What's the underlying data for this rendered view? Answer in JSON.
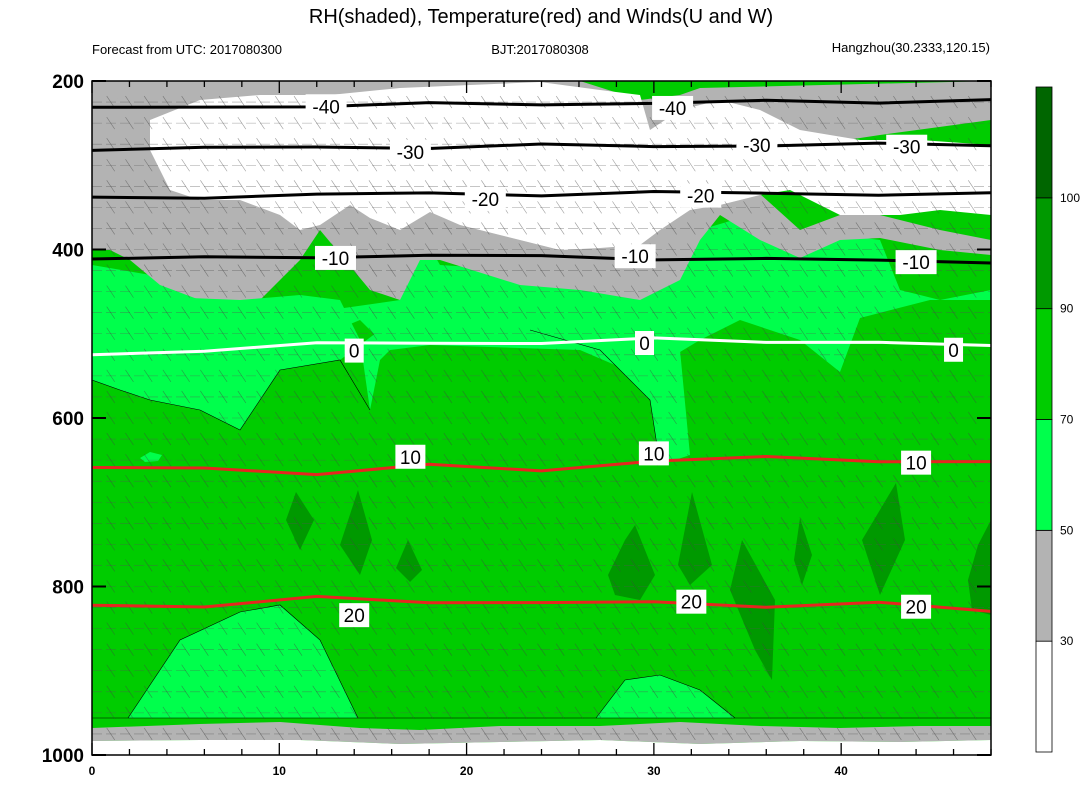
{
  "title": "RH(shaded), Temperature(red) and Winds(U and W)",
  "subtitle_left": "Forecast from UTC: 2017080300",
  "subtitle_center": "BJT:2017080308",
  "subtitle_right": "Hangzhou(30.2333,120.15)",
  "colors": {
    "rh_lt30": "#ffffff",
    "rh_30_50": "#b3b3b3",
    "rh_50_70": "#00ff4c",
    "rh_70_90": "#00cc00",
    "rh_90_100": "#009900",
    "rh_gt100": "#006600",
    "temperature_positive": "#e6261f",
    "temperature_zero": "#ffffff",
    "temperature_negative": "#000000"
  },
  "chart_data": {
    "type": "contour",
    "title": "RH(shaded), Temperature(red) and Winds(U and W)",
    "xlabel": "",
    "ylabel": "",
    "xlim": [
      0,
      48
    ],
    "ylim": [
      200,
      1000
    ],
    "y_inverted": true,
    "x_ticks": [
      0,
      10,
      20,
      30,
      40
    ],
    "y_ticks": [
      200,
      400,
      600,
      800,
      1000
    ],
    "colorbar": {
      "levels": [
        30,
        50,
        70,
        90,
        100
      ],
      "labels": [
        "30",
        "50",
        "70",
        "90",
        "100"
      ]
    },
    "temperature_contours": [
      {
        "label": "-40",
        "level": -40,
        "x": [
          0,
          6,
          12,
          18,
          24,
          30,
          36,
          42,
          48
        ],
        "y": [
          233,
          231,
          229,
          228,
          227,
          226,
          225,
          224,
          223
        ]
      },
      {
        "label": "-30",
        "level": -30,
        "x": [
          0,
          6,
          12,
          18,
          24,
          30,
          36,
          42,
          48
        ],
        "y": [
          280,
          280,
          279,
          278,
          277,
          277,
          276,
          276,
          275
        ]
      },
      {
        "label": "-20",
        "level": -20,
        "x": [
          0,
          6,
          12,
          18,
          24,
          30,
          36,
          42,
          48
        ],
        "y": [
          340,
          337,
          335,
          334,
          334,
          333,
          333,
          334,
          335
        ]
      },
      {
        "label": "-10",
        "level": -10,
        "x": [
          0,
          6,
          12,
          18,
          24,
          30,
          36,
          42,
          48
        ],
        "y": [
          410,
          411,
          408,
          407,
          409,
          410,
          412,
          413,
          414
        ]
      },
      {
        "label": "0",
        "level": 0,
        "x": [
          0,
          6,
          12,
          18,
          24,
          30,
          36,
          42,
          48
        ],
        "y": [
          525,
          519,
          513,
          510,
          511,
          507,
          508,
          511,
          515
        ]
      },
      {
        "label": "10",
        "level": 10,
        "x": [
          0,
          6,
          12,
          18,
          24,
          30,
          36,
          42,
          48
        ],
        "y": [
          660,
          660,
          665,
          657,
          662,
          650,
          648,
          650,
          652
        ]
      },
      {
        "label": "20",
        "level": 20,
        "x": [
          0,
          6,
          12,
          18,
          24,
          30,
          36,
          42,
          48
        ],
        "y": [
          820,
          825,
          813,
          817,
          821,
          818,
          823,
          821,
          828
        ]
      }
    ],
    "temperature_contour_labels": [
      {
        "text": "-40",
        "x": 12.5,
        "y": 230
      },
      {
        "text": "-40",
        "x": 31.0,
        "y": 232
      },
      {
        "text": "-30",
        "x": 17.0,
        "y": 284
      },
      {
        "text": "-30",
        "x": 35.5,
        "y": 276
      },
      {
        "text": "-30",
        "x": 43.5,
        "y": 278
      },
      {
        "text": "-20",
        "x": 21.0,
        "y": 340
      },
      {
        "text": "-20",
        "x": 32.5,
        "y": 336
      },
      {
        "text": "-10",
        "x": 13.0,
        "y": 410
      },
      {
        "text": "-10",
        "x": 29.0,
        "y": 408
      },
      {
        "text": "-10",
        "x": 44.0,
        "y": 415
      },
      {
        "text": "0",
        "x": 14.0,
        "y": 520
      },
      {
        "text": "0",
        "x": 29.5,
        "y": 511
      },
      {
        "text": "0",
        "x": 46.0,
        "y": 519
      },
      {
        "text": "10",
        "x": 17.0,
        "y": 646
      },
      {
        "text": "10",
        "x": 30.0,
        "y": 642
      },
      {
        "text": "10",
        "x": 44.0,
        "y": 653
      },
      {
        "text": "20",
        "x": 14.0,
        "y": 834
      },
      {
        "text": "20",
        "x": 32.0,
        "y": 818
      },
      {
        "text": "20",
        "x": 44.0,
        "y": 824
      }
    ]
  }
}
